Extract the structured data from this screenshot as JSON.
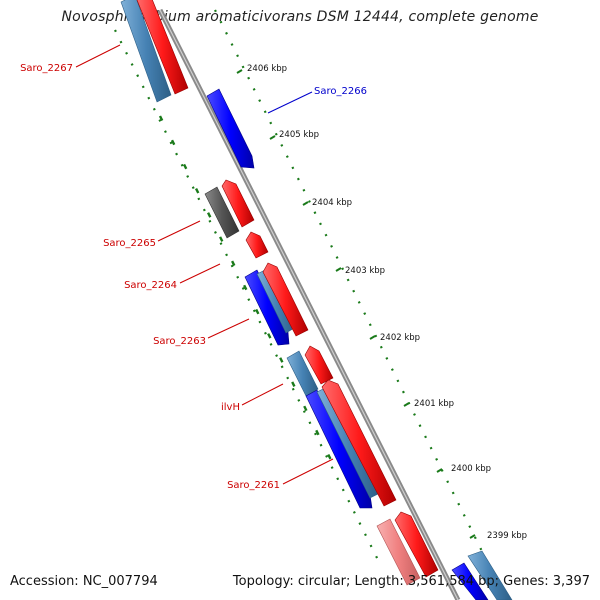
{
  "title": "Novosphingobium aromaticivorans DSM 12444, complete genome",
  "footer": {
    "accession": "Accession: NC_007794",
    "summary": "Topology: circular; Length: 3,561,584 bp; Genes: 3,397"
  },
  "colors": {
    "forward": "#ff0000",
    "reverse_blue": "#0000ff",
    "reverse_steel": "#4682b4",
    "other_gray": "#555555",
    "pseudo_pink": "#f08080",
    "backbone": "#777777",
    "gc_dots": "#1a7a1a",
    "label_red": "#cc0000",
    "label_blue": "#0000cc"
  },
  "ticks": [
    {
      "label": "2406 kbp"
    },
    {
      "label": "2405 kbp"
    },
    {
      "label": "2404 kbp"
    },
    {
      "label": "2403 kbp"
    },
    {
      "label": "2402 kbp"
    },
    {
      "label": "2401 kbp"
    },
    {
      "label": "2400 kbp"
    },
    {
      "label": "2399 kbp"
    }
  ],
  "gene_labels": [
    {
      "text": "Saro_2267",
      "strand": "forward"
    },
    {
      "text": "Saro_2266",
      "strand": "reverse"
    },
    {
      "text": "Saro_2265",
      "strand": "forward"
    },
    {
      "text": "Saro_2264",
      "strand": "forward"
    },
    {
      "text": "Saro_2263",
      "strand": "forward"
    },
    {
      "text": "ilvH",
      "strand": "forward"
    },
    {
      "text": "Saro_2261",
      "strand": "forward"
    }
  ],
  "features": [
    {
      "name": "feature-steel-1",
      "type": "reverse_steel"
    },
    {
      "name": "feature-red-1",
      "type": "forward"
    },
    {
      "name": "feature-blue-saro2266",
      "type": "reverse_blue"
    },
    {
      "name": "feature-gray-saro2265",
      "type": "other_gray"
    },
    {
      "name": "feature-red-saro2265",
      "type": "forward"
    },
    {
      "name": "feature-red-saro2264",
      "type": "forward"
    },
    {
      "name": "feature-blue-saro2263",
      "type": "reverse_blue"
    },
    {
      "name": "feature-steel-saro2263",
      "type": "reverse_steel"
    },
    {
      "name": "feature-red-saro2263",
      "type": "forward"
    },
    {
      "name": "feature-steel-ilvh",
      "type": "reverse_steel"
    },
    {
      "name": "feature-red-ilvh",
      "type": "forward"
    },
    {
      "name": "feature-blue-saro2261",
      "type": "reverse_blue"
    },
    {
      "name": "feature-steel-saro2261",
      "type": "reverse_steel"
    },
    {
      "name": "feature-red-saro2261",
      "type": "forward"
    },
    {
      "name": "feature-pink-bottom",
      "type": "pseudo_pink"
    },
    {
      "name": "feature-red-bottom",
      "type": "forward"
    },
    {
      "name": "feature-blue-bottom",
      "type": "reverse_blue"
    },
    {
      "name": "feature-steel-bottom",
      "type": "reverse_steel"
    }
  ]
}
